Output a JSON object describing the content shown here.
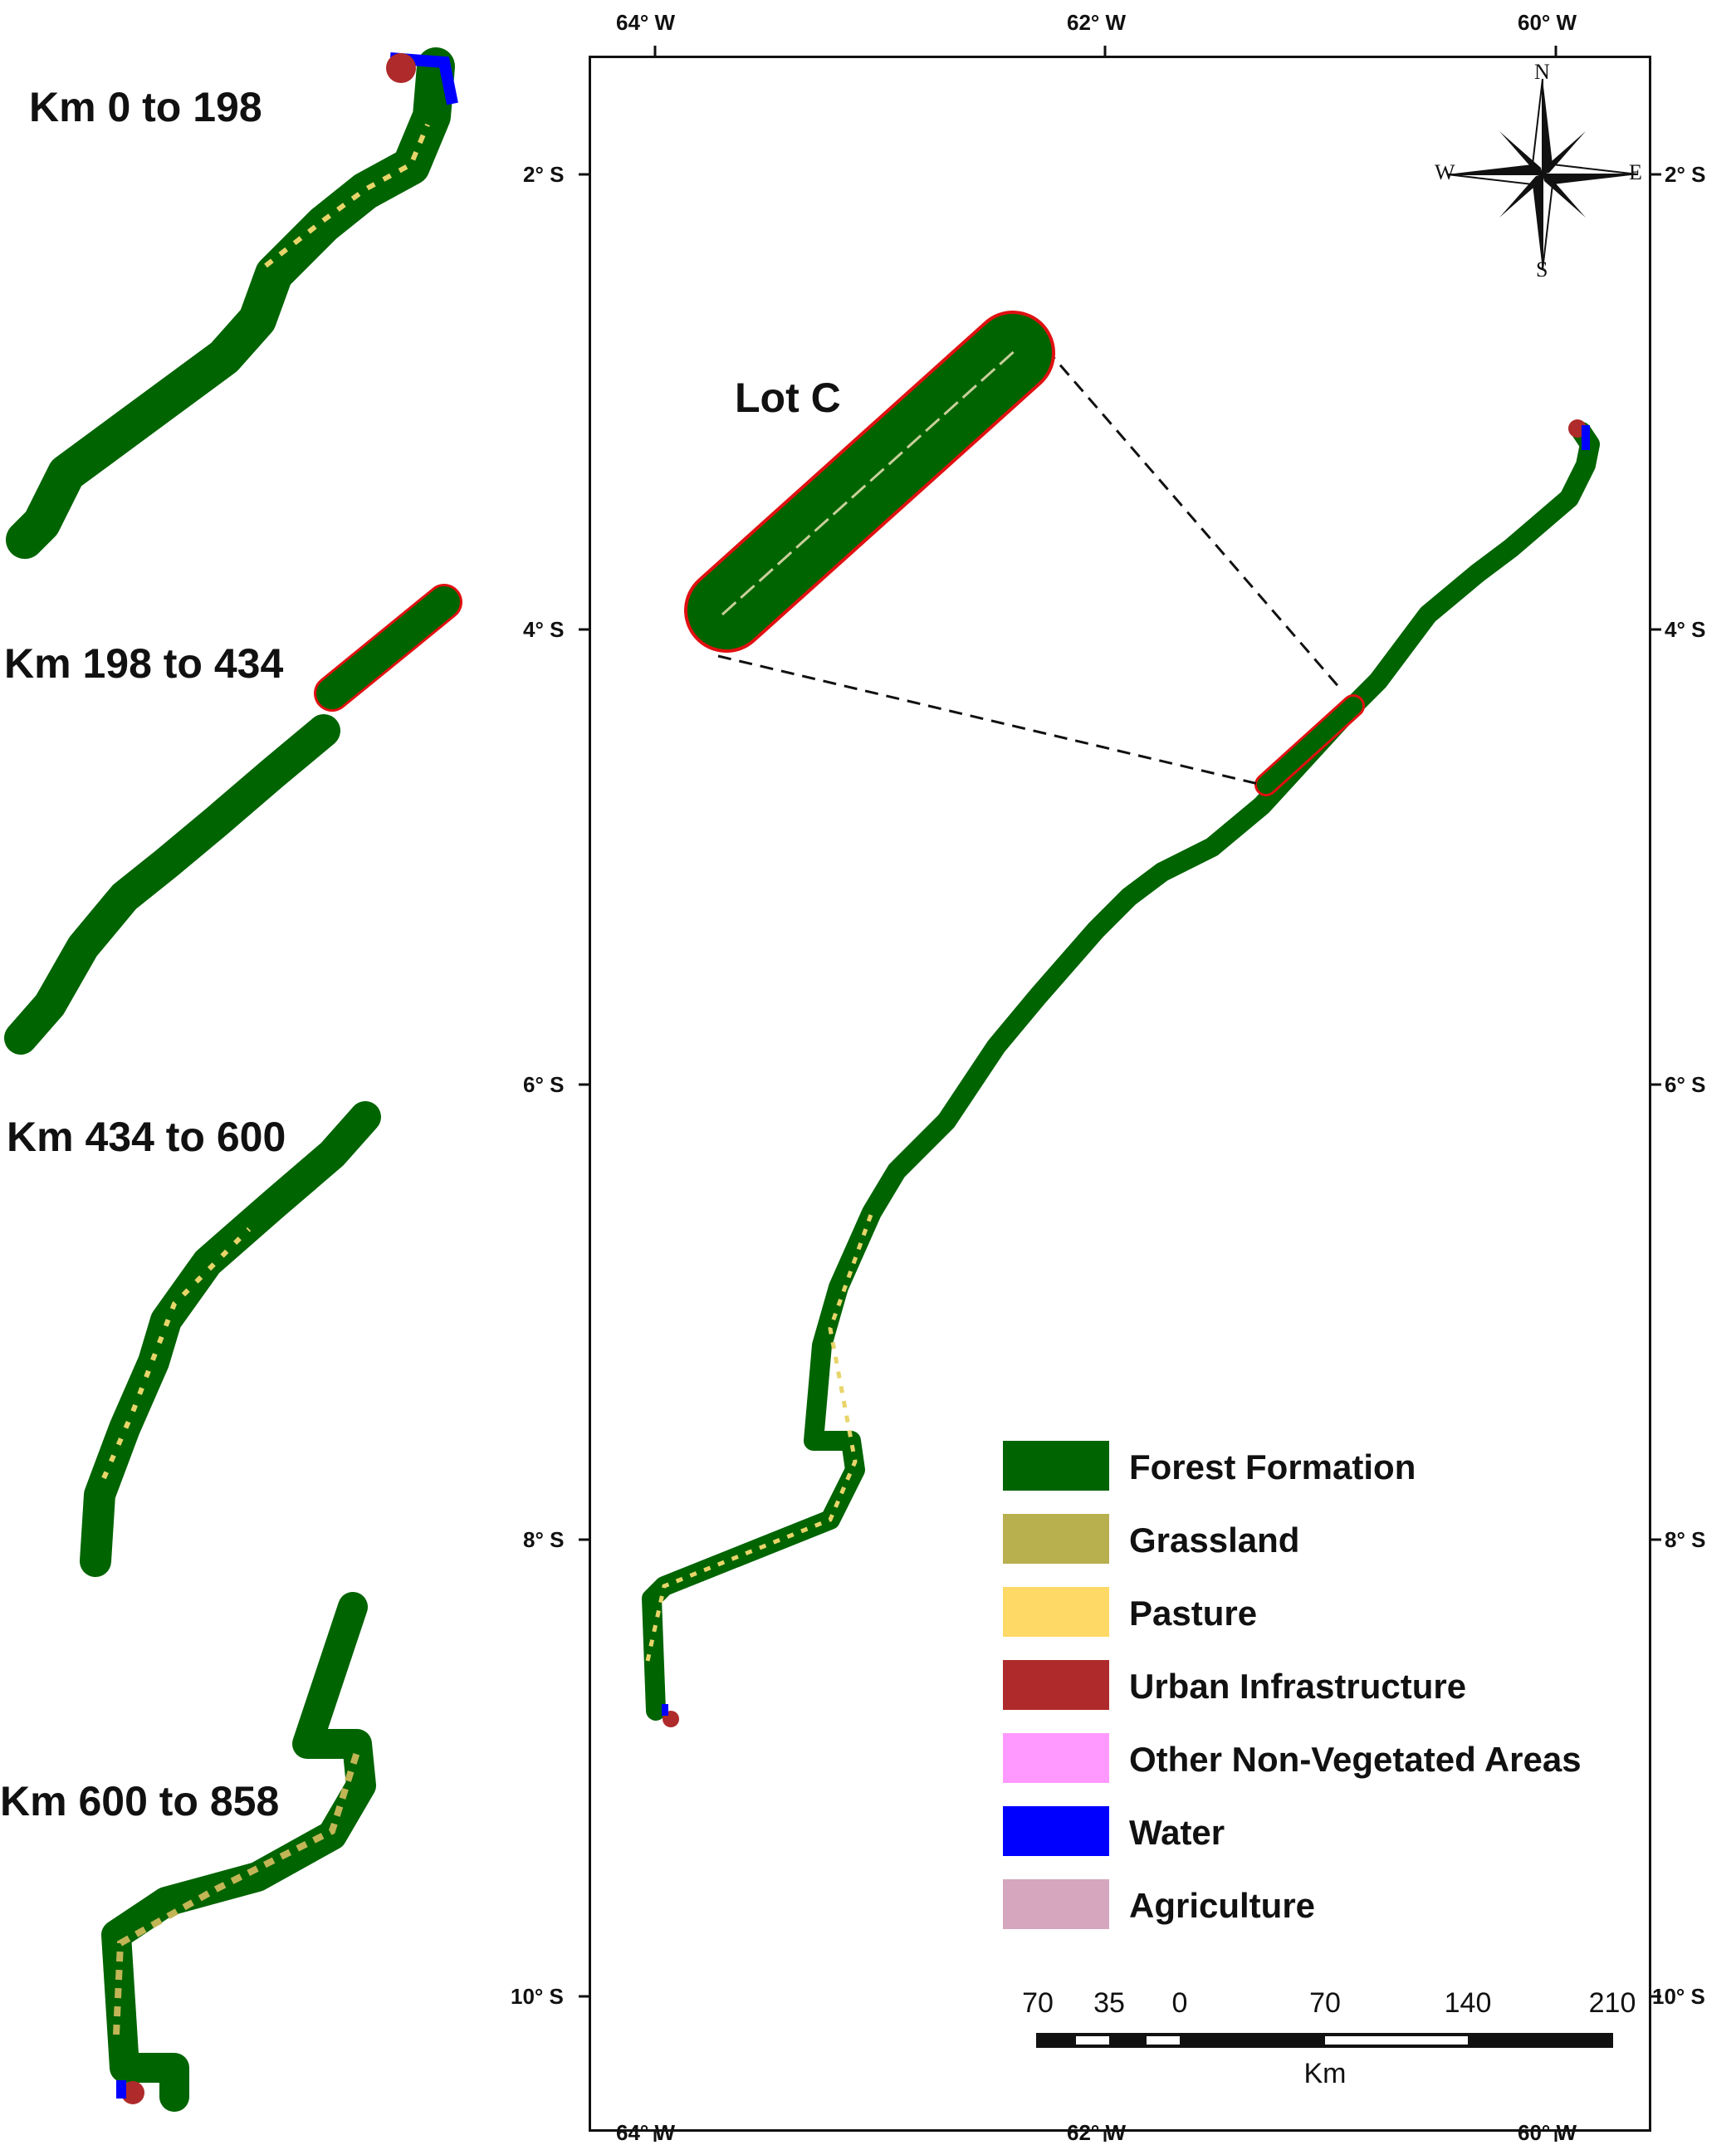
{
  "panels": [
    {
      "title": "Km 0 to 198"
    },
    {
      "title": "Km 198 to 434"
    },
    {
      "title": "Km 434 to 600"
    },
    {
      "title": "Km 600 to 858"
    }
  ],
  "map": {
    "inset_label": "Lot C",
    "longitude_ticks": [
      "64° W",
      "62° W",
      "60° W"
    ],
    "latitude_ticks": [
      "2° S",
      "4° S",
      "6° S",
      "8° S",
      "10° S"
    ],
    "compass": {
      "n": "N",
      "s": "S",
      "e": "E",
      "w": "W"
    }
  },
  "legend": [
    {
      "label": "Forest Formation",
      "color": "#006400"
    },
    {
      "label": "Grassland",
      "color": "#b8af4f"
    },
    {
      "label": "Pasture",
      "color": "#ffd966"
    },
    {
      "label": "Urban Infrastructure",
      "color": "#af2a2a"
    },
    {
      "label": "Other Non-Vegetated Areas",
      "color": "#ff99ff"
    },
    {
      "label": "Water",
      "color": "#0000ff"
    },
    {
      "label": "Agriculture",
      "color": "#d5a6bd"
    }
  ],
  "scale_bar": {
    "ticks": [
      "70",
      "35",
      "0",
      "70",
      "140",
      "210"
    ],
    "unit": "Km"
  },
  "colors": {
    "forest": "#006400",
    "lot_outline": "#e01010",
    "pasture_speckle": "#e8d56a",
    "grass_speckle": "#c2b556",
    "urban": "#af2a2a",
    "water": "#0000ff"
  }
}
